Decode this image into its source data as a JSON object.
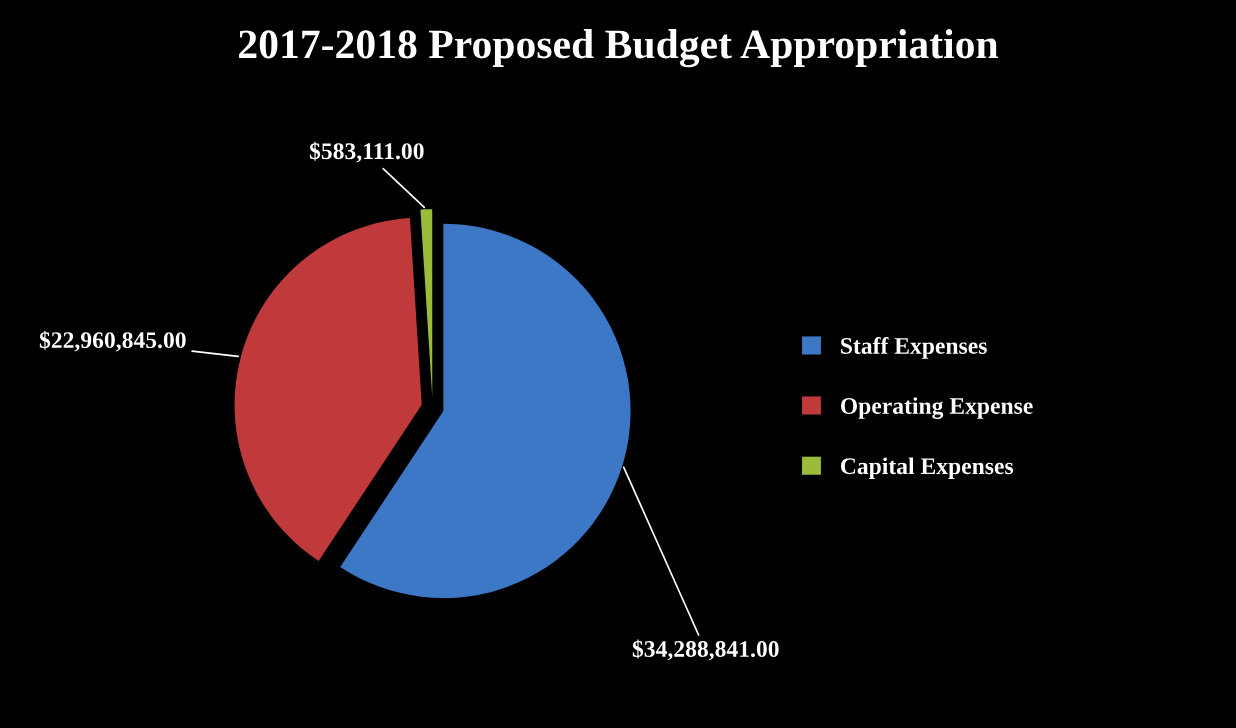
{
  "chart_data": {
    "type": "pie",
    "title": "2017-2018 Proposed Budget Appropriation",
    "categories": [
      "Staff Expenses",
      "Operating Expense",
      "Capital Expenses"
    ],
    "values": [
      34288841,
      22960845,
      583111
    ],
    "colors": [
      "#3d78c6",
      "#c0393b",
      "#9bbb3b"
    ],
    "value_labels": [
      "$34,288,841.00",
      "$22,960,845.00",
      "$583,111.00"
    ],
    "legend": "right"
  }
}
